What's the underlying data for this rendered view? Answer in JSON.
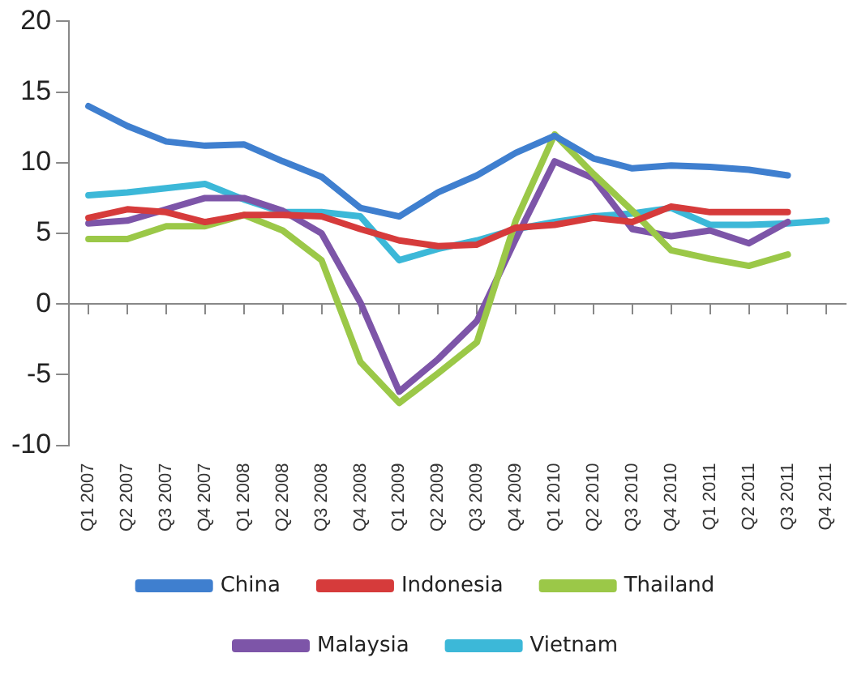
{
  "chart_data": {
    "type": "line",
    "categories": [
      "Q1 2007",
      "Q2 2007",
      "Q3 2007",
      "Q4 2007",
      "Q1 2008",
      "Q2 2008",
      "Q3 2008",
      "Q4 2008",
      "Q1 2009",
      "Q2 2009",
      "Q3 2009",
      "Q4 2009",
      "Q1 2010",
      "Q2 2010",
      "Q3 2010",
      "Q4 2010",
      "Q1 2011",
      "Q2 2011",
      "Q3 2011",
      "Q4 2011"
    ],
    "series": [
      {
        "name": "China",
        "color": "#3f7fcf",
        "values": [
          14,
          12.6,
          11.5,
          11.2,
          11.3,
          10.1,
          9,
          6.8,
          6.2,
          7.9,
          9.1,
          10.7,
          11.9,
          10.3,
          9.6,
          9.8,
          9.7,
          9.5,
          9.1,
          null
        ]
      },
      {
        "name": "Indonesia",
        "color": "#d63b3b",
        "values": [
          6.1,
          6.7,
          6.5,
          5.8,
          6.3,
          6.3,
          6.2,
          5.3,
          4.5,
          4.1,
          4.2,
          5.4,
          5.6,
          6.1,
          5.8,
          6.9,
          6.5,
          6.5,
          6.5,
          null
        ]
      },
      {
        "name": "Thailand",
        "color": "#9bc848",
        "values": [
          4.6,
          4.6,
          5.5,
          5.5,
          6.3,
          5.2,
          3.1,
          -4.1,
          -7,
          -4.9,
          -2.7,
          5.9,
          12,
          9.2,
          6.6,
          3.8,
          3.2,
          2.7,
          3.5,
          null
        ]
      },
      {
        "name": "Malaysia",
        "color": "#7d55a8",
        "values": [
          5.7,
          5.9,
          6.7,
          7.5,
          7.5,
          6.6,
          5,
          0.1,
          -6.2,
          -3.9,
          -1.2,
          4.6,
          10.1,
          8.9,
          5.3,
          4.8,
          5.2,
          4.3,
          5.8,
          null
        ]
      },
      {
        "name": "Vietnam",
        "color": "#3cb8d8",
        "values": [
          7.7,
          7.9,
          8.2,
          8.5,
          7.4,
          6.5,
          6.5,
          6.2,
          3.1,
          3.9,
          4.5,
          5.3,
          5.8,
          6.2,
          6.4,
          6.8,
          5.6,
          5.6,
          5.7,
          5.9
        ]
      }
    ],
    "ylim": [
      -10,
      20
    ],
    "yticks": [
      -10,
      -5,
      0,
      5,
      10,
      15,
      20
    ],
    "legend": "bottom",
    "marker": "none",
    "line_style": "solid"
  }
}
